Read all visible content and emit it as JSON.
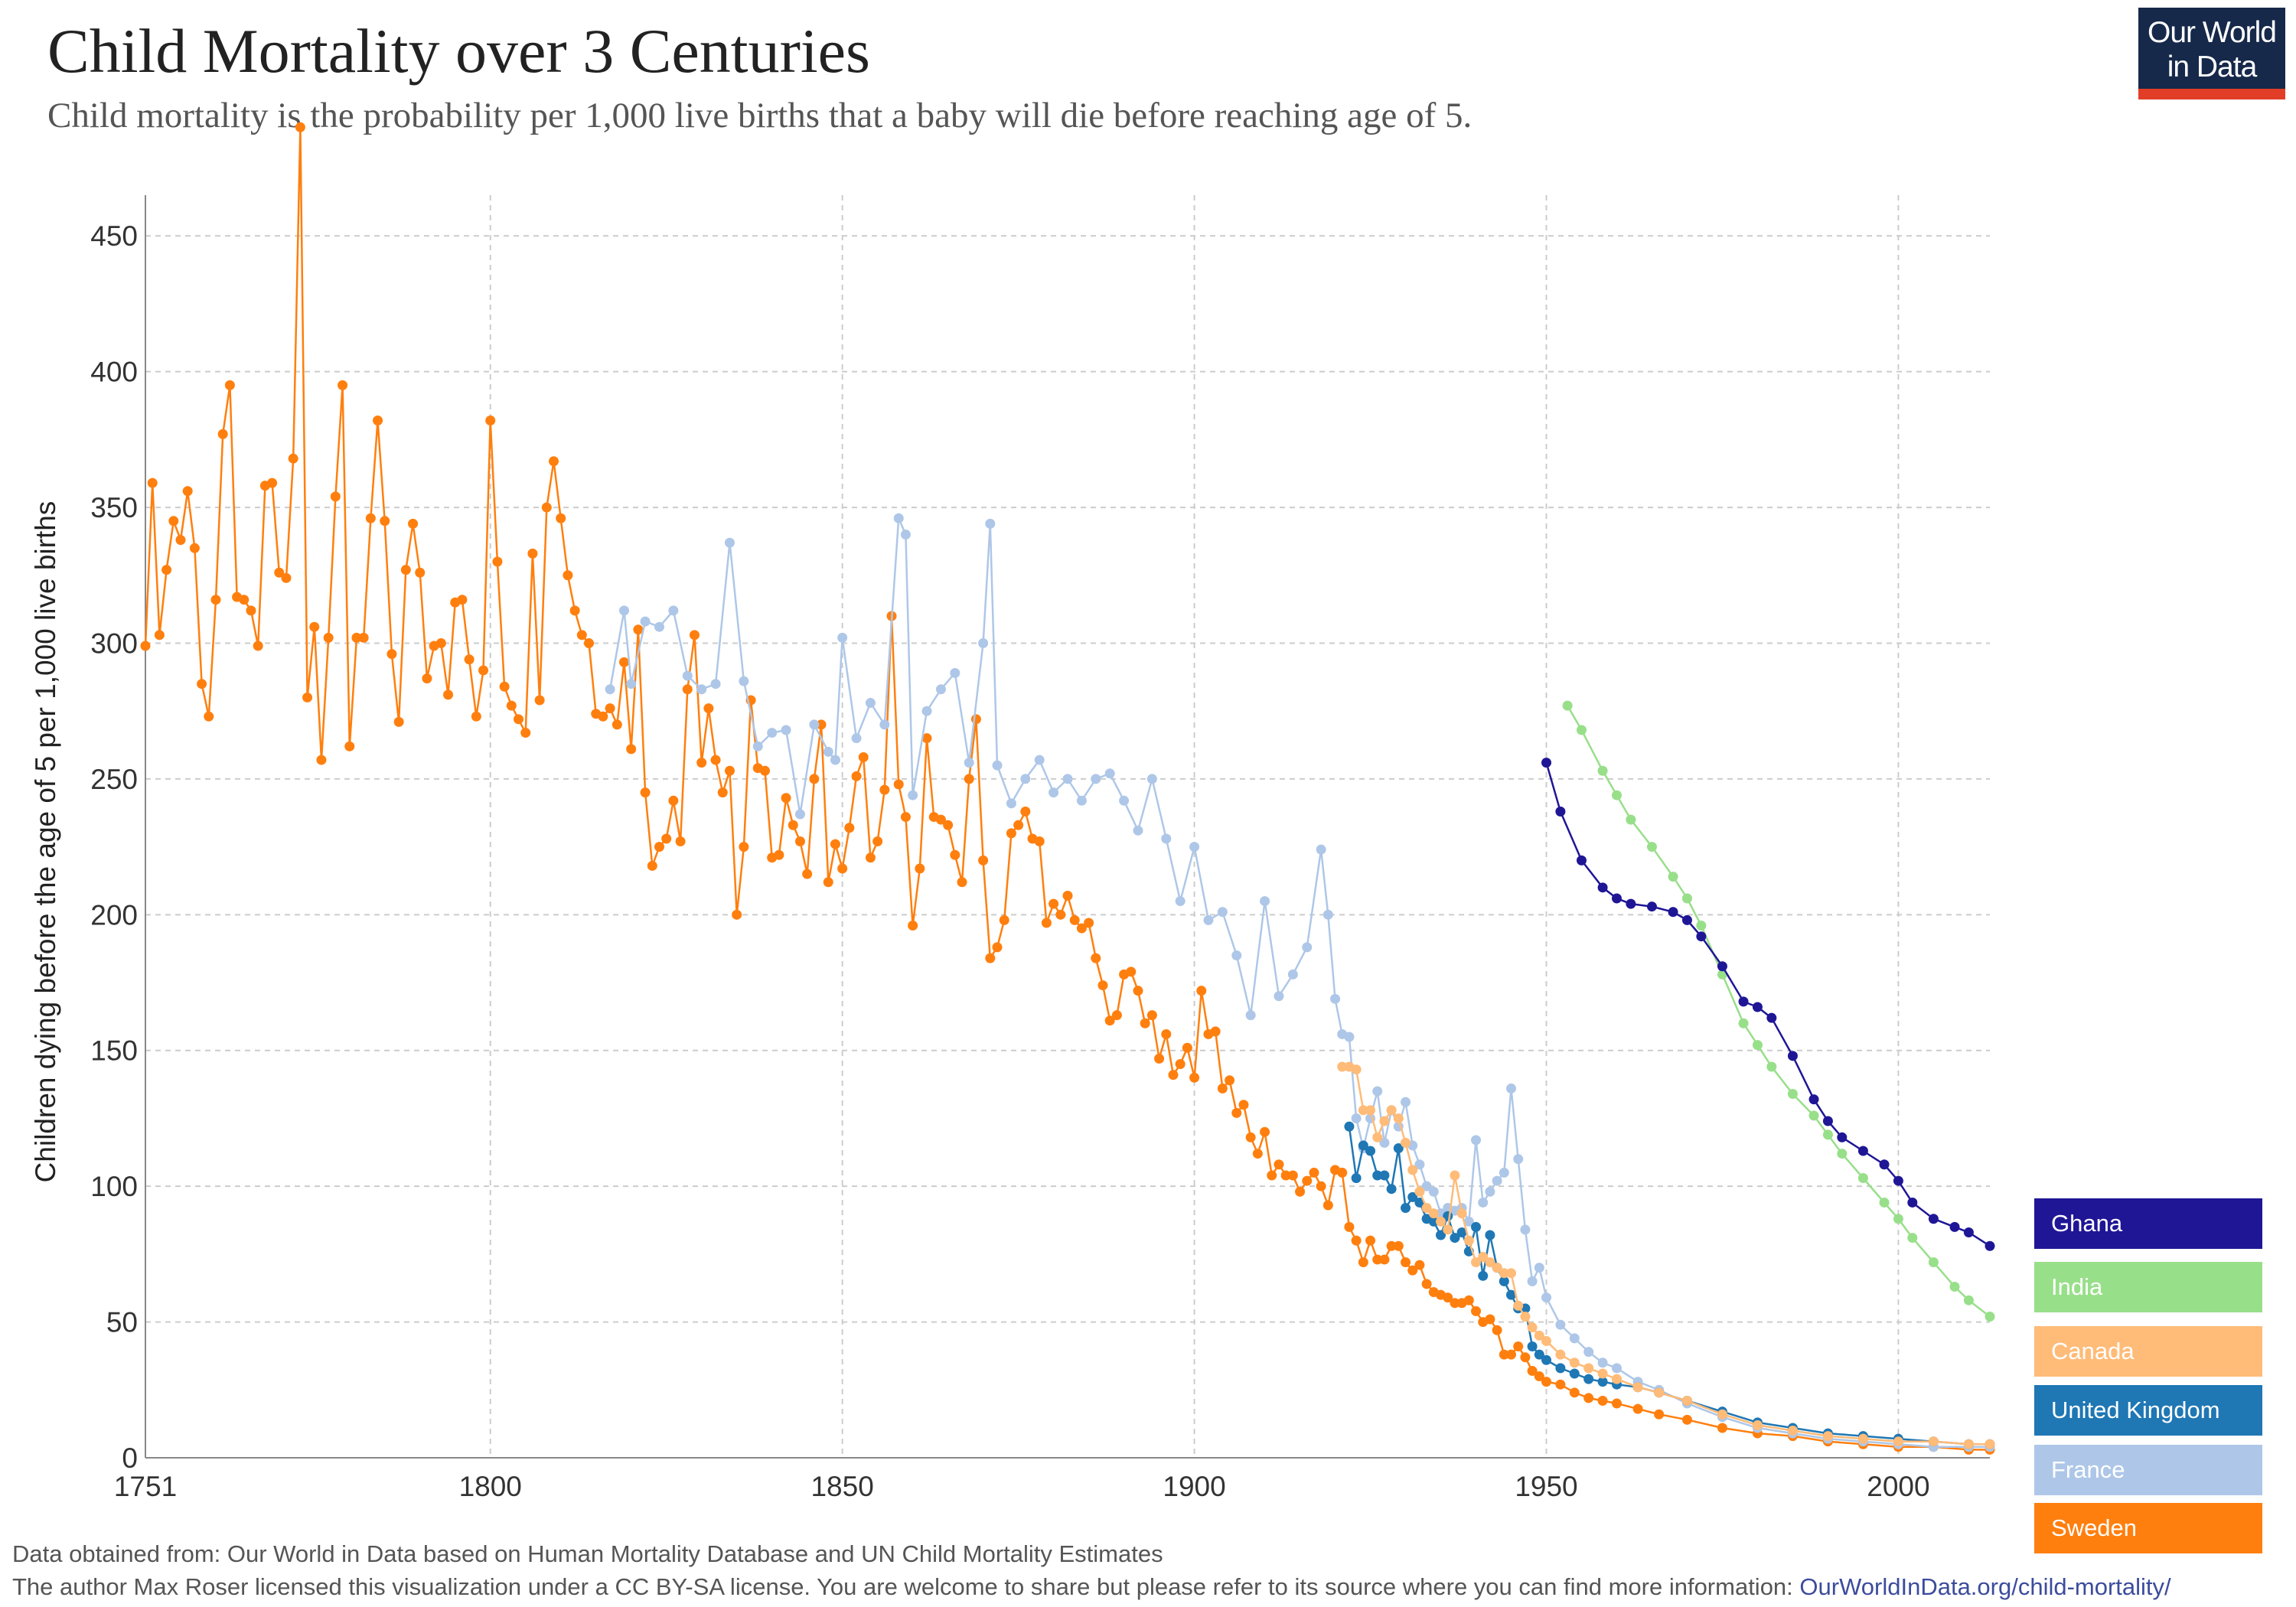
{
  "title": "Child Mortality over 3 Centuries",
  "subtitle": "Child mortality is the probability per 1,000 live births that a baby will die before reaching age of 5.",
  "logo": {
    "line1": "Our World",
    "line2": "in Data"
  },
  "footer": {
    "source": "Data obtained from: Our World in Data based on Human Mortality Database and UN Child Mortality Estimates",
    "license": "The author Max Roser licensed this visualization under a CC BY-SA license. You are welcome to share but please refer to its source where you can find more information: ",
    "link": "OurWorldInData.org/child-mortality/"
  },
  "chart_data": {
    "type": "line",
    "ylabel": "Children dying before the age of 5 per 1,000 live births",
    "xlabel": "",
    "xlim": [
      1751,
      2013
    ],
    "ylim": [
      0,
      465
    ],
    "x_ticks": [
      1751,
      1800,
      1850,
      1900,
      1950,
      2000
    ],
    "y_ticks": [
      0,
      50,
      100,
      150,
      200,
      250,
      300,
      350,
      400,
      450
    ],
    "grid": true,
    "legend_position": "bottom-right",
    "series": [
      {
        "name": "Ghana",
        "color": "#1f1696",
        "x": [
          1950,
          1952,
          1955,
          1958,
          1960,
          1962,
          1965,
          1968,
          1970,
          1972,
          1975,
          1978,
          1980,
          1982,
          1985,
          1988,
          1990,
          1992,
          1995,
          1998,
          2000,
          2002,
          2005,
          2008,
          2010,
          2013
        ],
        "values": [
          256,
          238,
          220,
          210,
          206,
          204,
          203,
          201,
          198,
          192,
          181,
          168,
          166,
          162,
          148,
          132,
          124,
          118,
          113,
          108,
          102,
          94,
          88,
          85,
          83,
          78
        ]
      },
      {
        "name": "India",
        "color": "#98df8a",
        "x": [
          1953,
          1955,
          1958,
          1960,
          1962,
          1965,
          1968,
          1970,
          1972,
          1975,
          1978,
          1980,
          1982,
          1985,
          1988,
          1990,
          1992,
          1995,
          1998,
          2000,
          2002,
          2005,
          2008,
          2010,
          2013
        ],
        "values": [
          277,
          268,
          253,
          244,
          235,
          225,
          214,
          206,
          196,
          178,
          160,
          152,
          144,
          134,
          126,
          119,
          112,
          103,
          94,
          88,
          81,
          72,
          63,
          58,
          52
        ]
      },
      {
        "name": "Canada",
        "color": "#ffbb78",
        "x": [
          1921,
          1922,
          1923,
          1924,
          1925,
          1926,
          1927,
          1928,
          1929,
          1930,
          1931,
          1932,
          1933,
          1934,
          1935,
          1936,
          1937,
          1938,
          1939,
          1940,
          1941,
          1942,
          1943,
          1944,
          1945,
          1946,
          1947,
          1948,
          1949,
          1950,
          1952,
          1954,
          1956,
          1958,
          1960,
          1963,
          1966,
          1970,
          1975,
          1980,
          1985,
          1990,
          1995,
          2000,
          2005,
          2010,
          2013
        ],
        "values": [
          144,
          144,
          143,
          128,
          128,
          118,
          124,
          128,
          125,
          116,
          106,
          98,
          92,
          90,
          87,
          84,
          104,
          90,
          80,
          72,
          74,
          72,
          70,
          68,
          68,
          56,
          52,
          48,
          45,
          43,
          38,
          35,
          33,
          31,
          29,
          26,
          24,
          21,
          16,
          12,
          10,
          8,
          7,
          6,
          6,
          5,
          5
        ]
      },
      {
        "name": "United Kingdom",
        "color": "#1f77b4",
        "x": [
          1922,
          1923,
          1924,
          1925,
          1926,
          1927,
          1928,
          1929,
          1930,
          1931,
          1932,
          1933,
          1934,
          1935,
          1936,
          1937,
          1938,
          1939,
          1940,
          1941,
          1942,
          1943,
          1944,
          1945,
          1946,
          1947,
          1948,
          1949,
          1950,
          1952,
          1954,
          1956,
          1958,
          1960,
          1963,
          1966,
          1970,
          1975,
          1980,
          1985,
          1990,
          1995,
          2000,
          2005,
          2010,
          2013
        ],
        "values": [
          122,
          103,
          115,
          113,
          104,
          104,
          99,
          114,
          92,
          96,
          94,
          88,
          87,
          82,
          89,
          81,
          83,
          76,
          85,
          67,
          82,
          70,
          65,
          60,
          55,
          55,
          41,
          38,
          36,
          33,
          31,
          29,
          28,
          27,
          26,
          24,
          21,
          17,
          13,
          11,
          9,
          8,
          7,
          6,
          5,
          5
        ]
      },
      {
        "name": "France",
        "color": "#aec7e8",
        "x": [
          1817,
          1819,
          1820,
          1822,
          1824,
          1826,
          1828,
          1830,
          1832,
          1834,
          1836,
          1838,
          1840,
          1842,
          1844,
          1846,
          1848,
          1849,
          1850,
          1852,
          1854,
          1856,
          1858,
          1859,
          1860,
          1862,
          1864,
          1866,
          1868,
          1870,
          1871,
          1872,
          1874,
          1876,
          1878,
          1880,
          1882,
          1884,
          1886,
          1888,
          1890,
          1892,
          1894,
          1896,
          1898,
          1900,
          1902,
          1904,
          1906,
          1908,
          1910,
          1912,
          1914,
          1916,
          1918,
          1919,
          1920,
          1921,
          1922,
          1923,
          1924,
          1925,
          1926,
          1927,
          1928,
          1929,
          1930,
          1931,
          1932,
          1933,
          1934,
          1935,
          1936,
          1937,
          1938,
          1939,
          1940,
          1941,
          1942,
          1943,
          1944,
          1945,
          1946,
          1947,
          1948,
          1949,
          1950,
          1952,
          1954,
          1956,
          1958,
          1960,
          1963,
          1966,
          1970,
          1975,
          1980,
          1985,
          1990,
          1995,
          2000,
          2005,
          2010,
          2013
        ],
        "values": [
          283,
          312,
          285,
          308,
          306,
          312,
          288,
          283,
          285,
          337,
          286,
          262,
          267,
          268,
          237,
          270,
          260,
          257,
          302,
          265,
          278,
          270,
          346,
          340,
          244,
          275,
          283,
          289,
          256,
          300,
          344,
          255,
          241,
          250,
          257,
          245,
          250,
          242,
          250,
          252,
          242,
          231,
          250,
          228,
          205,
          225,
          198,
          201,
          185,
          163,
          205,
          170,
          178,
          188,
          224,
          200,
          169,
          156,
          155,
          125,
          114,
          125,
          135,
          116,
          128,
          122,
          131,
          115,
          108,
          100,
          98,
          90,
          92,
          91,
          92,
          87,
          117,
          94,
          98,
          102,
          105,
          136,
          110,
          84,
          65,
          70,
          59,
          49,
          44,
          39,
          35,
          33,
          28,
          25,
          20,
          15,
          11,
          9,
          7,
          6,
          5,
          4,
          4,
          4
        ]
      },
      {
        "name": "Sweden",
        "color": "#ff7f0e",
        "x": [
          1751,
          1752,
          1753,
          1754,
          1755,
          1756,
          1757,
          1758,
          1759,
          1760,
          1761,
          1762,
          1763,
          1764,
          1765,
          1766,
          1767,
          1768,
          1769,
          1770,
          1771,
          1772,
          1773,
          1774,
          1775,
          1776,
          1777,
          1778,
          1779,
          1780,
          1781,
          1782,
          1783,
          1784,
          1785,
          1786,
          1787,
          1788,
          1789,
          1790,
          1791,
          1792,
          1793,
          1794,
          1795,
          1796,
          1797,
          1798,
          1799,
          1800,
          1801,
          1802,
          1803,
          1804,
          1805,
          1806,
          1807,
          1808,
          1809,
          1810,
          1811,
          1812,
          1813,
          1814,
          1815,
          1816,
          1817,
          1818,
          1819,
          1820,
          1821,
          1822,
          1823,
          1824,
          1825,
          1826,
          1827,
          1828,
          1829,
          1830,
          1831,
          1832,
          1833,
          1834,
          1835,
          1836,
          1837,
          1838,
          1839,
          1840,
          1841,
          1842,
          1843,
          1844,
          1845,
          1846,
          1847,
          1848,
          1849,
          1850,
          1851,
          1852,
          1853,
          1854,
          1855,
          1856,
          1857,
          1858,
          1859,
          1860,
          1861,
          1862,
          1863,
          1864,
          1865,
          1866,
          1867,
          1868,
          1869,
          1870,
          1871,
          1872,
          1873,
          1874,
          1875,
          1876,
          1877,
          1878,
          1879,
          1880,
          1881,
          1882,
          1883,
          1884,
          1885,
          1886,
          1887,
          1888,
          1889,
          1890,
          1891,
          1892,
          1893,
          1894,
          1895,
          1896,
          1897,
          1898,
          1899,
          1900,
          1901,
          1902,
          1903,
          1904,
          1905,
          1906,
          1907,
          1908,
          1909,
          1910,
          1911,
          1912,
          1913,
          1914,
          1915,
          1916,
          1917,
          1918,
          1919,
          1920,
          1921,
          1922,
          1923,
          1924,
          1925,
          1926,
          1927,
          1928,
          1929,
          1930,
          1931,
          1932,
          1933,
          1934,
          1935,
          1936,
          1937,
          1938,
          1939,
          1940,
          1941,
          1942,
          1943,
          1944,
          1945,
          1946,
          1947,
          1948,
          1949,
          1950,
          1952,
          1954,
          1956,
          1958,
          1960,
          1963,
          1966,
          1970,
          1975,
          1980,
          1985,
          1990,
          1995,
          2000,
          2005,
          2010,
          2013
        ],
        "values": [
          299,
          359,
          303,
          327,
          345,
          338,
          356,
          335,
          285,
          273,
          316,
          377,
          395,
          317,
          316,
          312,
          299,
          358,
          359,
          326,
          324,
          368,
          490,
          280,
          306,
          257,
          302,
          354,
          395,
          262,
          302,
          302,
          346,
          382,
          345,
          296,
          271,
          327,
          344,
          326,
          287,
          299,
          300,
          281,
          315,
          316,
          294,
          273,
          290,
          382,
          330,
          284,
          277,
          272,
          267,
          333,
          279,
          350,
          367,
          346,
          325,
          312,
          303,
          300,
          274,
          273,
          276,
          270,
          293,
          261,
          305,
          245,
          218,
          225,
          228,
          242,
          227,
          283,
          303,
          256,
          276,
          257,
          245,
          253,
          200,
          225,
          279,
          254,
          253,
          221,
          222,
          243,
          233,
          227,
          215,
          250,
          270,
          212,
          226,
          217,
          232,
          251,
          258,
          221,
          227,
          246,
          310,
          248,
          236,
          196,
          217,
          265,
          236,
          235,
          233,
          222,
          212,
          250,
          272,
          220,
          184,
          188,
          198,
          230,
          233,
          238,
          228,
          227,
          197,
          204,
          200,
          207,
          198,
          195,
          197,
          184,
          174,
          161,
          163,
          178,
          179,
          172,
          160,
          163,
          147,
          156,
          141,
          145,
          151,
          140,
          172,
          156,
          157,
          136,
          139,
          127,
          130,
          118,
          112,
          120,
          104,
          108,
          104,
          104,
          98,
          102,
          105,
          100,
          93,
          106,
          105,
          85,
          80,
          72,
          80,
          73,
          73,
          78,
          78,
          72,
          69,
          71,
          64,
          61,
          60,
          59,
          57,
          57,
          58,
          54,
          50,
          51,
          47,
          38,
          38,
          41,
          37,
          32,
          30,
          28,
          27,
          24,
          22,
          21,
          20,
          18,
          16,
          14,
          11,
          9,
          8,
          6,
          5,
          4,
          4,
          3,
          3
        ]
      }
    ]
  }
}
